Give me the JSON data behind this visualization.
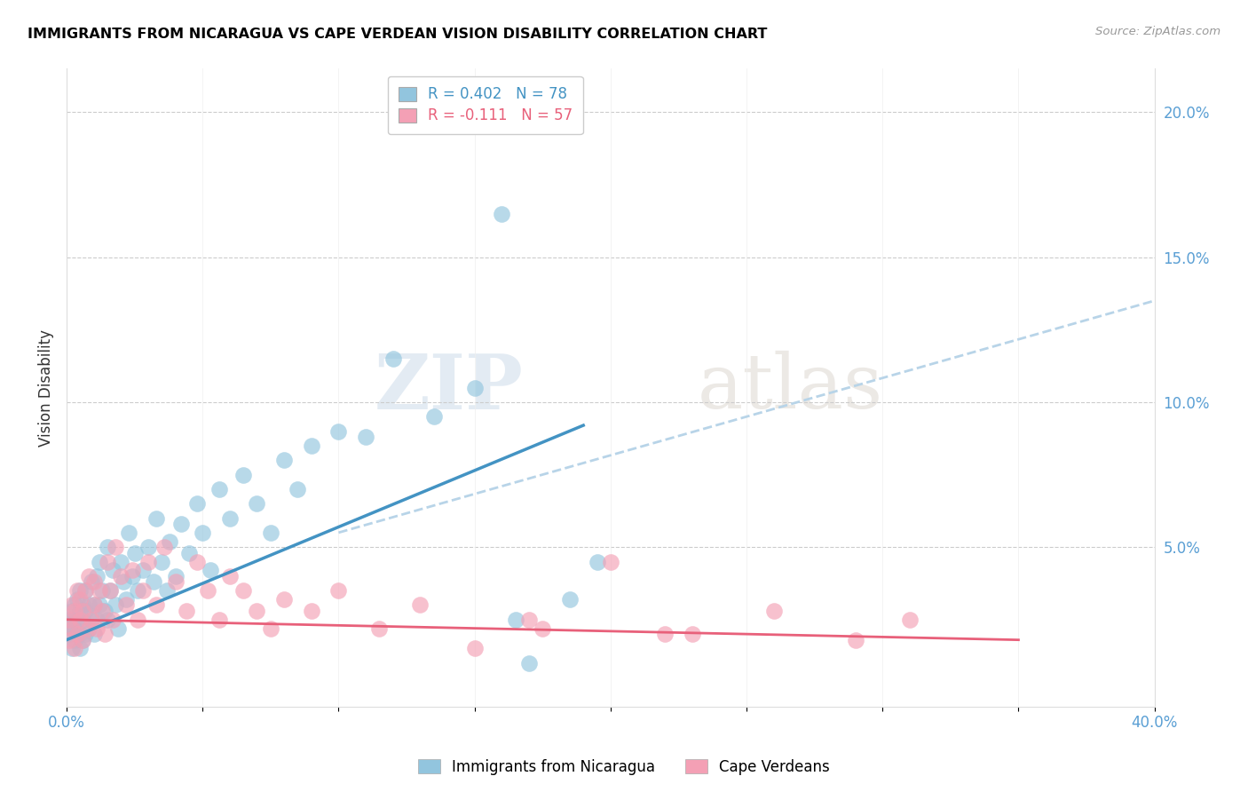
{
  "title": "IMMIGRANTS FROM NICARAGUA VS CAPE VERDEAN VISION DISABILITY CORRELATION CHART",
  "source": "Source: ZipAtlas.com",
  "ylabel": "Vision Disability",
  "xlim": [
    0.0,
    0.4
  ],
  "ylim": [
    -0.005,
    0.215
  ],
  "color_blue": "#92c5de",
  "color_pink": "#f4a0b5",
  "line_blue": "#4393c3",
  "line_pink": "#e8607a",
  "line_dashed_color": "#b8d4e8",
  "watermark_zip": "ZIP",
  "watermark_atlas": "atlas",
  "nicaragua_x": [
    0.001,
    0.001,
    0.002,
    0.002,
    0.002,
    0.003,
    0.003,
    0.003,
    0.003,
    0.004,
    0.004,
    0.004,
    0.005,
    0.005,
    0.005,
    0.005,
    0.006,
    0.006,
    0.006,
    0.007,
    0.007,
    0.007,
    0.008,
    0.008,
    0.009,
    0.009,
    0.01,
    0.01,
    0.011,
    0.011,
    0.012,
    0.012,
    0.013,
    0.014,
    0.015,
    0.015,
    0.016,
    0.017,
    0.018,
    0.019,
    0.02,
    0.021,
    0.022,
    0.023,
    0.024,
    0.025,
    0.026,
    0.028,
    0.03,
    0.032,
    0.033,
    0.035,
    0.037,
    0.038,
    0.04,
    0.042,
    0.045,
    0.048,
    0.05,
    0.053,
    0.056,
    0.06,
    0.065,
    0.07,
    0.075,
    0.08,
    0.085,
    0.09,
    0.1,
    0.11,
    0.12,
    0.135,
    0.15,
    0.165,
    0.17,
    0.185,
    0.195,
    0.16
  ],
  "nicaragua_y": [
    0.02,
    0.025,
    0.015,
    0.028,
    0.022,
    0.018,
    0.025,
    0.03,
    0.022,
    0.02,
    0.032,
    0.025,
    0.015,
    0.02,
    0.028,
    0.035,
    0.018,
    0.025,
    0.03,
    0.02,
    0.028,
    0.035,
    0.022,
    0.03,
    0.025,
    0.038,
    0.02,
    0.03,
    0.025,
    0.04,
    0.03,
    0.045,
    0.035,
    0.028,
    0.025,
    0.05,
    0.035,
    0.042,
    0.03,
    0.022,
    0.045,
    0.038,
    0.032,
    0.055,
    0.04,
    0.048,
    0.035,
    0.042,
    0.05,
    0.038,
    0.06,
    0.045,
    0.035,
    0.052,
    0.04,
    0.058,
    0.048,
    0.065,
    0.055,
    0.042,
    0.07,
    0.06,
    0.075,
    0.065,
    0.055,
    0.08,
    0.07,
    0.085,
    0.09,
    0.088,
    0.115,
    0.095,
    0.105,
    0.025,
    0.01,
    0.032,
    0.045,
    0.165
  ],
  "capeverde_x": [
    0.001,
    0.001,
    0.002,
    0.002,
    0.003,
    0.003,
    0.004,
    0.004,
    0.005,
    0.005,
    0.006,
    0.006,
    0.007,
    0.008,
    0.008,
    0.009,
    0.01,
    0.01,
    0.011,
    0.012,
    0.013,
    0.014,
    0.015,
    0.016,
    0.017,
    0.018,
    0.02,
    0.022,
    0.024,
    0.026,
    0.028,
    0.03,
    0.033,
    0.036,
    0.04,
    0.044,
    0.048,
    0.052,
    0.056,
    0.06,
    0.065,
    0.07,
    0.075,
    0.08,
    0.09,
    0.1,
    0.115,
    0.13,
    0.15,
    0.17,
    0.2,
    0.23,
    0.26,
    0.29,
    0.22,
    0.31,
    0.175
  ],
  "capeverde_y": [
    0.018,
    0.025,
    0.022,
    0.03,
    0.015,
    0.028,
    0.02,
    0.035,
    0.025,
    0.032,
    0.018,
    0.028,
    0.035,
    0.022,
    0.04,
    0.025,
    0.03,
    0.038,
    0.022,
    0.035,
    0.028,
    0.02,
    0.045,
    0.035,
    0.025,
    0.05,
    0.04,
    0.03,
    0.042,
    0.025,
    0.035,
    0.045,
    0.03,
    0.05,
    0.038,
    0.028,
    0.045,
    0.035,
    0.025,
    0.04,
    0.035,
    0.028,
    0.022,
    0.032,
    0.028,
    0.035,
    0.022,
    0.03,
    0.015,
    0.025,
    0.045,
    0.02,
    0.028,
    0.018,
    0.02,
    0.025,
    0.022
  ],
  "nic_line_x": [
    0.0,
    0.19
  ],
  "nic_line_y": [
    0.018,
    0.092
  ],
  "cv_line_x": [
    0.0,
    0.35
  ],
  "cv_line_y": [
    0.025,
    0.018
  ],
  "dashed_line_x": [
    0.1,
    0.4
  ],
  "dashed_line_y": [
    0.055,
    0.135
  ]
}
